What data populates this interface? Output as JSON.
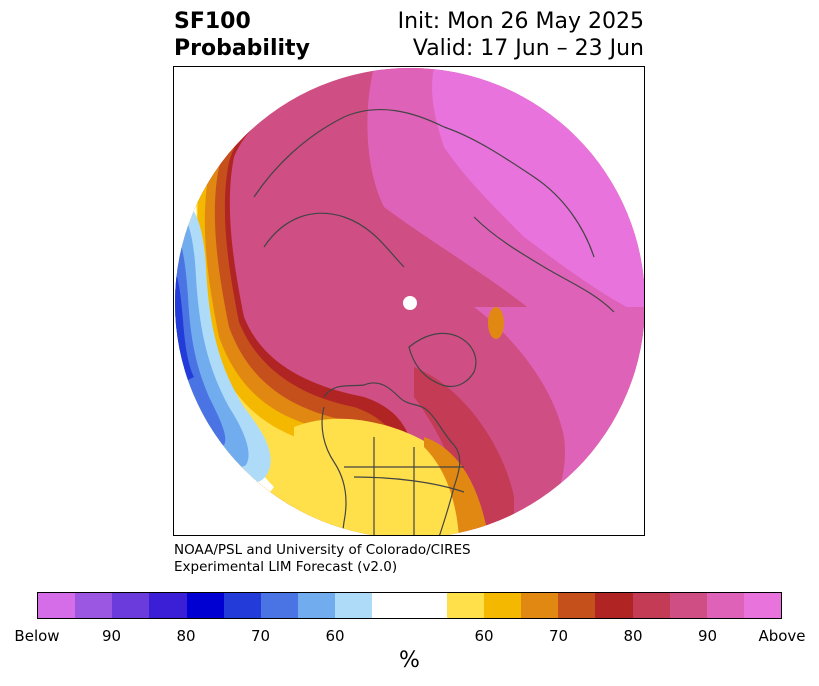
{
  "header": {
    "title_line1": "SF100",
    "title_line2": "Probability",
    "init_line": "Init: Mon 26 May 2025",
    "valid_line": "Valid: 17 Jun – 23 Jun"
  },
  "credit": {
    "line1": "NOAA/PSL and University of Colorado/CIRES",
    "line2": "Experimental LIM Forecast (v2.0)"
  },
  "legend": {
    "colors": [
      "#d66de8",
      "#9b57e2",
      "#6c3bdb",
      "#3a1fd6",
      "#0000d3",
      "#223bd9",
      "#4a73e4",
      "#71acef",
      "#aedcf8",
      "#ffffff",
      "#ffffff",
      "#ffe04b",
      "#f4b800",
      "#e08812",
      "#c5501c",
      "#b02424",
      "#c33b55",
      "#cf4f84",
      "#de62b8",
      "#e873dc"
    ],
    "tick_labels": [
      "Below",
      "90",
      "80",
      "70",
      "60",
      "60",
      "70",
      "80",
      "90",
      "Above"
    ],
    "unit": "%"
  },
  "map": {
    "projection": "north-polar-stereographic",
    "field_colors": {
      "above_max": "#e873dc",
      "above_90": "#de62b8",
      "above_80": "#cf4f84",
      "above_75": "#c33b55",
      "above_70": "#b02424",
      "above_65": "#c5501c",
      "above_60": "#e08812",
      "above_55": "#f4b800",
      "above_50": "#ffe04b",
      "below_50": "#aedcf8",
      "below_60": "#71acef",
      "below_70": "#4a73e4",
      "below_80": "#223bd9",
      "pole_marker": "#ffffff",
      "coastline": "#444444"
    }
  }
}
